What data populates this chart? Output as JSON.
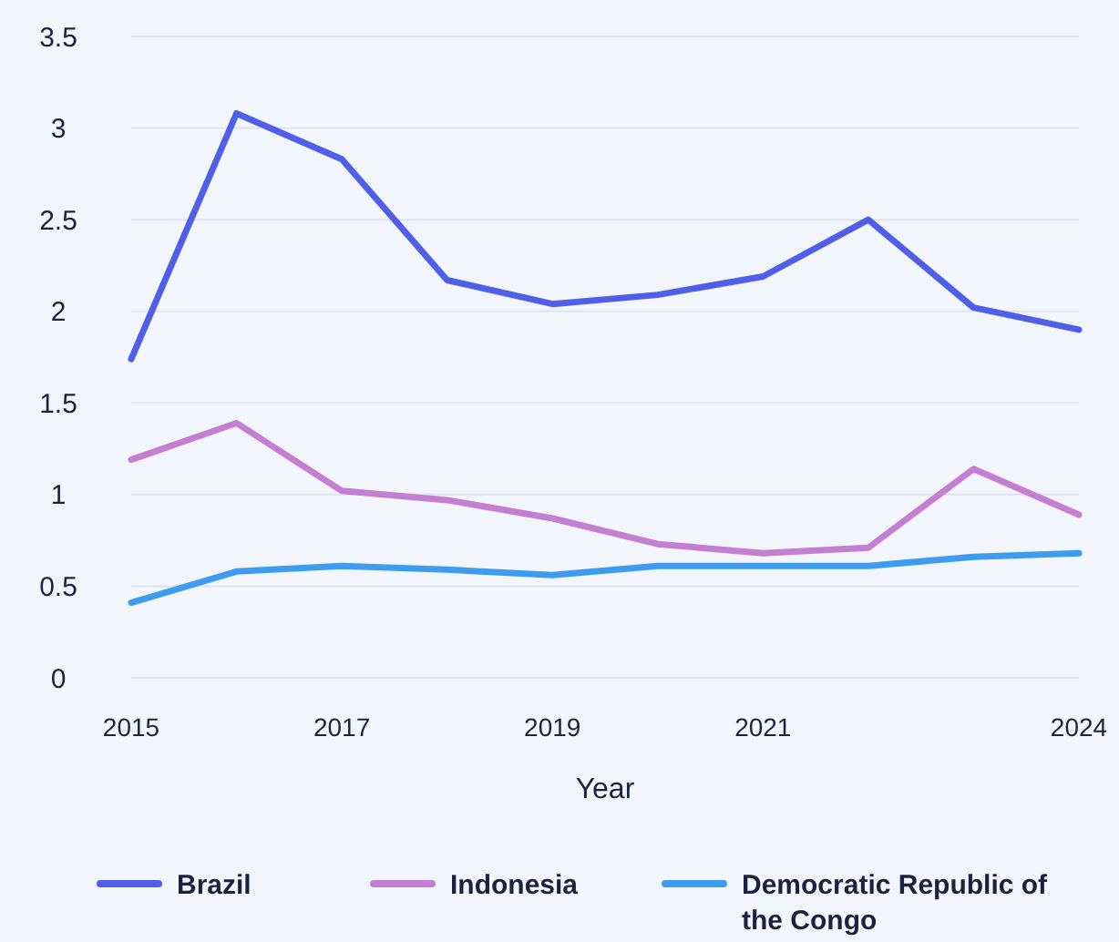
{
  "chart_data": {
    "type": "line",
    "xlabel": "Year",
    "x": [
      2015,
      2016,
      2017,
      2018,
      2019,
      2020,
      2021,
      2022,
      2023,
      2024
    ],
    "series": [
      {
        "name": "Brazil",
        "color": "#4f5fe8",
        "values": [
          1.74,
          3.08,
          2.83,
          2.17,
          2.04,
          2.09,
          2.19,
          2.5,
          2.02,
          1.9
        ]
      },
      {
        "name": "Indonesia",
        "color": "#c47fd1",
        "values": [
          1.19,
          1.39,
          1.02,
          0.97,
          0.87,
          0.73,
          0.68,
          0.71,
          1.14,
          0.89
        ]
      },
      {
        "name": "Democratic Republic of the Congo",
        "color": "#3d9cf0",
        "values": [
          0.41,
          0.58,
          0.61,
          0.59,
          0.56,
          0.61,
          0.61,
          0.61,
          0.66,
          0.68
        ]
      }
    ],
    "xlim": [
      2015,
      2024
    ],
    "xticks": [
      2015,
      2017,
      2019,
      2021,
      2024
    ],
    "ylim": [
      0,
      3.5
    ],
    "yticks": [
      0,
      0.5,
      1,
      1.5,
      2,
      2.5,
      3,
      3.5
    ],
    "grid": "y",
    "legend": "bottom",
    "marker": "none",
    "line_style": "solid"
  }
}
